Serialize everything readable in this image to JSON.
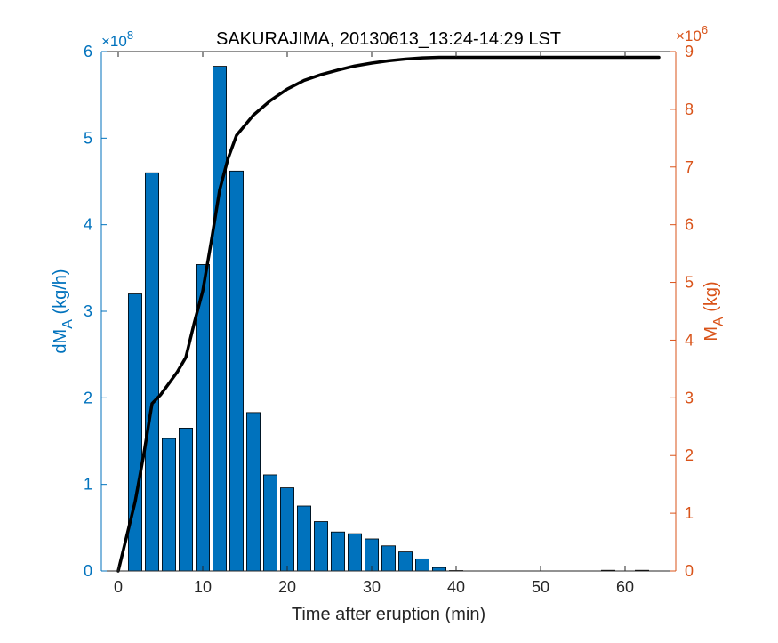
{
  "colors": {
    "left_axis": "#0072BD",
    "right_axis": "#D95319",
    "line": "#000000",
    "bars": "#0072BD"
  },
  "chart_data": {
    "type": "bar",
    "title": "SAKURAJIMA, 20130613_13:24-14:29 LST",
    "xlabel": "Time after eruption (min)",
    "ylabel_left": {
      "main": "dM",
      "sub": "A",
      "unit": " (kg/h)"
    },
    "ylabel_right": {
      "main": "M",
      "sub": "A",
      "unit": " (kg)"
    },
    "xlim": [
      -2,
      66
    ],
    "ylim_left": [
      0,
      6
    ],
    "ylim_right": [
      0,
      9
    ],
    "left_multiplier": {
      "base": "×10",
      "exp": "8"
    },
    "right_multiplier": {
      "base": "×10",
      "exp": "6"
    },
    "x_ticks": [
      0,
      10,
      20,
      30,
      40,
      50,
      60
    ],
    "y_ticks_left": [
      0,
      1,
      2,
      3,
      4,
      5,
      6
    ],
    "y_ticks_right": [
      0,
      1,
      2,
      3,
      4,
      5,
      6,
      7,
      8,
      9
    ],
    "bars": {
      "name": "dMA",
      "bar_width": 1.6,
      "x": [
        2,
        4,
        6,
        8,
        10,
        12,
        14,
        16,
        18,
        20,
        22,
        24,
        26,
        28,
        30,
        32,
        34,
        36,
        38,
        40,
        42,
        44,
        46,
        48,
        50,
        52,
        54,
        56,
        58,
        60,
        62
      ],
      "values": [
        3.2,
        4.6,
        1.53,
        1.65,
        3.54,
        5.83,
        4.62,
        1.83,
        1.11,
        0.96,
        0.75,
        0.57,
        0.45,
        0.43,
        0.37,
        0.29,
        0.22,
        0.14,
        0.04,
        0.005,
        0.0,
        0.0,
        0.0,
        0.0,
        0.0,
        0.0,
        0.0,
        0.0,
        0.008,
        0.0,
        0.008
      ]
    },
    "line": {
      "name": "MA",
      "x": [
        0,
        1,
        2,
        3,
        4,
        5,
        6,
        7,
        8,
        9,
        10,
        11,
        12,
        13,
        14,
        16,
        18,
        20,
        22,
        24,
        26,
        28,
        30,
        32,
        34,
        36,
        38,
        40,
        50,
        60,
        64
      ],
      "values": [
        0,
        0.6,
        1.2,
        2.0,
        2.9,
        3.05,
        3.25,
        3.45,
        3.7,
        4.3,
        4.85,
        5.7,
        6.6,
        7.15,
        7.55,
        7.9,
        8.15,
        8.35,
        8.5,
        8.6,
        8.68,
        8.75,
        8.8,
        8.84,
        8.87,
        8.89,
        8.9,
        8.9,
        8.9,
        8.9,
        8.9
      ]
    }
  }
}
